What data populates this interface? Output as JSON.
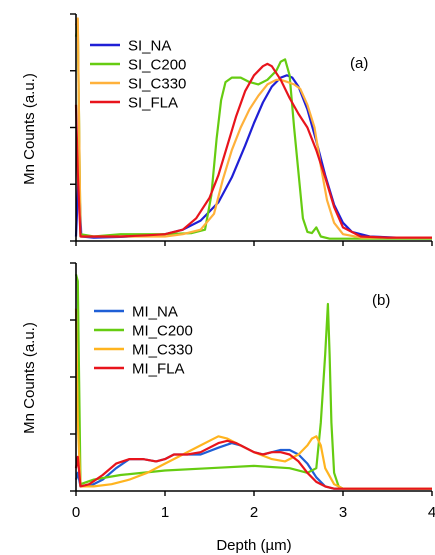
{
  "chart_data": [
    {
      "type": "line",
      "panel_label": "(a)",
      "ylabel": "Mn Counts (a.u.)",
      "xlim": [
        0,
        4
      ],
      "ylim": [
        0,
        1
      ],
      "grid": false,
      "legend_position": "top-left",
      "series": [
        {
          "name": "SI_NA",
          "color": "#1f1fd6",
          "x": [
            0,
            0.03,
            0.06,
            0.2,
            0.5,
            0.8,
            1.0,
            1.2,
            1.4,
            1.6,
            1.75,
            1.9,
            2.0,
            2.1,
            2.2,
            2.3,
            2.37,
            2.43,
            2.5,
            2.6,
            2.7,
            2.8,
            2.9,
            3.0,
            3.1,
            3.3,
            3.6,
            4.0
          ],
          "y": [
            0.02,
            0.3,
            0.02,
            0.015,
            0.018,
            0.022,
            0.03,
            0.05,
            0.09,
            0.17,
            0.28,
            0.42,
            0.52,
            0.61,
            0.68,
            0.72,
            0.73,
            0.72,
            0.68,
            0.58,
            0.44,
            0.29,
            0.16,
            0.08,
            0.04,
            0.02,
            0.015,
            0.015
          ]
        },
        {
          "name": "SI_C200",
          "color": "#66cc11",
          "x": [
            0,
            0.02,
            0.05,
            0.2,
            0.5,
            1.0,
            1.3,
            1.45,
            1.52,
            1.58,
            1.63,
            1.68,
            1.75,
            1.85,
            1.95,
            2.05,
            2.15,
            2.25,
            2.3,
            2.35,
            2.4,
            2.45,
            2.55,
            2.6,
            2.65,
            2.7,
            2.75,
            2.85,
            3.0,
            3.5,
            4.0
          ],
          "y": [
            0.9,
            0.95,
            0.03,
            0.02,
            0.03,
            0.03,
            0.035,
            0.05,
            0.2,
            0.45,
            0.62,
            0.7,
            0.72,
            0.72,
            0.7,
            0.69,
            0.71,
            0.75,
            0.79,
            0.8,
            0.73,
            0.5,
            0.1,
            0.04,
            0.035,
            0.06,
            0.02,
            0.01,
            0.01,
            0.01,
            0.01
          ]
        },
        {
          "name": "SI_C330",
          "color": "#ffb13b",
          "x": [
            0,
            0.02,
            0.05,
            0.2,
            0.5,
            1.0,
            1.2,
            1.4,
            1.55,
            1.65,
            1.75,
            1.85,
            1.95,
            2.05,
            2.15,
            2.25,
            2.3,
            2.38,
            2.45,
            2.52,
            2.6,
            2.68,
            2.75,
            2.82,
            2.9,
            3.0,
            3.2,
            3.5,
            4.0
          ],
          "y": [
            0.95,
            0.98,
            0.02,
            0.02,
            0.02,
            0.02,
            0.03,
            0.05,
            0.12,
            0.27,
            0.4,
            0.5,
            0.58,
            0.64,
            0.69,
            0.71,
            0.71,
            0.7,
            0.69,
            0.67,
            0.6,
            0.5,
            0.33,
            0.18,
            0.08,
            0.03,
            0.015,
            0.015,
            0.015
          ]
        },
        {
          "name": "SI_FLA",
          "color": "#e8141c",
          "x": [
            0,
            0.02,
            0.05,
            0.2,
            0.5,
            0.8,
            1.0,
            1.2,
            1.35,
            1.5,
            1.6,
            1.7,
            1.8,
            1.9,
            2.0,
            2.1,
            2.15,
            2.2,
            2.3,
            2.4,
            2.5,
            2.6,
            2.7,
            2.8,
            2.9,
            3.0,
            3.2,
            3.5,
            4.0
          ],
          "y": [
            0.6,
            0.3,
            0.02,
            0.02,
            0.02,
            0.025,
            0.03,
            0.05,
            0.1,
            0.19,
            0.29,
            0.42,
            0.55,
            0.66,
            0.73,
            0.77,
            0.78,
            0.77,
            0.71,
            0.63,
            0.56,
            0.5,
            0.4,
            0.28,
            0.15,
            0.06,
            0.02,
            0.015,
            0.015
          ]
        }
      ]
    },
    {
      "type": "line",
      "panel_label": "(b)",
      "xlabel": "Depth (µm)",
      "ylabel": "Mn Counts (a.u.)",
      "xlim": [
        0,
        4
      ],
      "ylim": [
        0,
        1
      ],
      "xticks": [
        "0",
        "1",
        "2",
        "3",
        "4"
      ],
      "grid": false,
      "legend_position": "top-left",
      "series": [
        {
          "name": "MI_NA",
          "color": "#1f5fd6",
          "x": [
            0,
            0.02,
            0.05,
            0.15,
            0.3,
            0.45,
            0.6,
            0.75,
            0.9,
            1.0,
            1.1,
            1.25,
            1.4,
            1.6,
            1.75,
            1.85,
            2.0,
            2.1,
            2.2,
            2.3,
            2.4,
            2.5,
            2.6,
            2.65,
            2.7,
            2.75,
            2.8,
            2.9,
            3.0,
            3.5,
            4.0
          ],
          "y": [
            0.05,
            0.08,
            0.02,
            0.02,
            0.05,
            0.1,
            0.14,
            0.14,
            0.13,
            0.14,
            0.16,
            0.16,
            0.16,
            0.19,
            0.21,
            0.2,
            0.17,
            0.16,
            0.17,
            0.18,
            0.18,
            0.16,
            0.12,
            0.09,
            0.06,
            0.04,
            0.02,
            0.01,
            0.01,
            0.01,
            0.01
          ]
        },
        {
          "name": "MI_C200",
          "color": "#66cc11",
          "x": [
            0,
            0.02,
            0.05,
            0.2,
            0.5,
            1.0,
            1.5,
            2.0,
            2.4,
            2.6,
            2.7,
            2.75,
            2.8,
            2.83,
            2.85,
            2.87,
            2.9,
            2.95,
            3.0,
            3.5,
            4.0
          ],
          "y": [
            0.95,
            0.92,
            0.03,
            0.05,
            0.07,
            0.09,
            0.1,
            0.11,
            0.1,
            0.08,
            0.1,
            0.3,
            0.6,
            0.82,
            0.6,
            0.3,
            0.08,
            0.02,
            0.01,
            0.01,
            0.01
          ]
        },
        {
          "name": "MI_C330",
          "color": "#ffb41f",
          "x": [
            0,
            0.02,
            0.05,
            0.2,
            0.4,
            0.6,
            0.8,
            1.0,
            1.2,
            1.4,
            1.5,
            1.6,
            1.7,
            1.8,
            2.0,
            2.2,
            2.35,
            2.5,
            2.6,
            2.65,
            2.7,
            2.75,
            2.8,
            2.9,
            3.0,
            3.5,
            4.0
          ],
          "y": [
            0.8,
            0.3,
            0.02,
            0.02,
            0.03,
            0.05,
            0.08,
            0.12,
            0.16,
            0.2,
            0.22,
            0.24,
            0.23,
            0.21,
            0.17,
            0.14,
            0.13,
            0.16,
            0.2,
            0.23,
            0.24,
            0.2,
            0.1,
            0.03,
            0.01,
            0.01,
            0.01
          ]
        },
        {
          "name": "MI_FLA",
          "color": "#e8141c",
          "x": [
            0,
            0.02,
            0.05,
            0.15,
            0.3,
            0.45,
            0.6,
            0.75,
            0.9,
            1.0,
            1.1,
            1.25,
            1.4,
            1.6,
            1.7,
            1.8,
            2.0,
            2.1,
            2.2,
            2.3,
            2.4,
            2.5,
            2.6,
            2.7,
            2.8,
            2.9,
            3.0,
            3.5,
            4.0
          ],
          "y": [
            0.1,
            0.15,
            0.02,
            0.03,
            0.07,
            0.12,
            0.14,
            0.14,
            0.13,
            0.14,
            0.16,
            0.16,
            0.17,
            0.21,
            0.22,
            0.21,
            0.17,
            0.16,
            0.17,
            0.17,
            0.16,
            0.13,
            0.08,
            0.04,
            0.02,
            0.01,
            0.01,
            0.01,
            0.01
          ]
        }
      ]
    }
  ]
}
